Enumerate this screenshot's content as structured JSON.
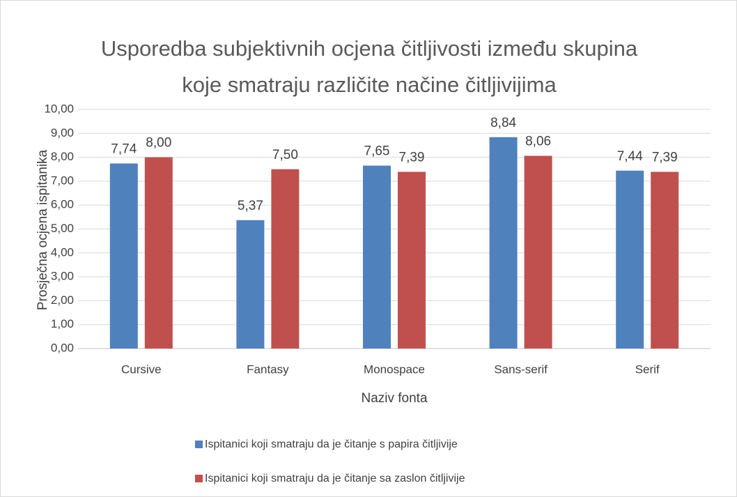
{
  "chart_data": {
    "type": "bar",
    "title": "Usporedba subjektivnih ocjena čitljivosti između skupina koje smatraju različite načine čitljivijima",
    "x_label": "Naziv fonta",
    "y_label": "Prosječna ocjena ispitanika",
    "categories": [
      "Cursive",
      "Fantasy",
      "Monospace",
      "Sans-serif",
      "Serif"
    ],
    "series": [
      {
        "name": "Ispitanici koji smatraju da je čitanje s papira čitljivije",
        "color": "#4f81bd",
        "values": [
          7.74,
          5.37,
          7.65,
          8.84,
          7.44
        ],
        "value_labels": [
          "7,74",
          "5,37",
          "7,65",
          "8,84",
          "7,44"
        ]
      },
      {
        "name": "Ispitanici koji smatraju da je čitanje sa zaslon čitljivije",
        "color": "#c0504d",
        "values": [
          8.0,
          7.5,
          7.39,
          8.06,
          7.39
        ],
        "value_labels": [
          "8,00",
          "7,50",
          "7,39",
          "8,06",
          "7,39"
        ]
      }
    ],
    "ylim": [
      0,
      10
    ],
    "yticks": [
      {
        "value": 0,
        "label": "0,00"
      },
      {
        "value": 1,
        "label": "1,00"
      },
      {
        "value": 2,
        "label": "2,00"
      },
      {
        "value": 3,
        "label": "3,00"
      },
      {
        "value": 4,
        "label": "4,00"
      },
      {
        "value": 5,
        "label": "5,00"
      },
      {
        "value": 6,
        "label": "6,00"
      },
      {
        "value": 7,
        "label": "7,00"
      },
      {
        "value": 8,
        "label": "8,00"
      },
      {
        "value": 9,
        "label": "9,00"
      },
      {
        "value": 10,
        "label": "10,00"
      }
    ],
    "grid": true,
    "legend": "bottom"
  }
}
